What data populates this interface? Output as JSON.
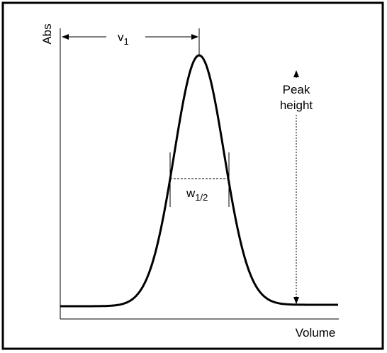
{
  "labels": {
    "y_axis": "Abs",
    "x_axis": "Volume",
    "v": {
      "main": "v",
      "sub": "1"
    },
    "w": {
      "main": "w",
      "sub": "1/2"
    },
    "peak_height": [
      "Peak",
      "height"
    ]
  }
}
